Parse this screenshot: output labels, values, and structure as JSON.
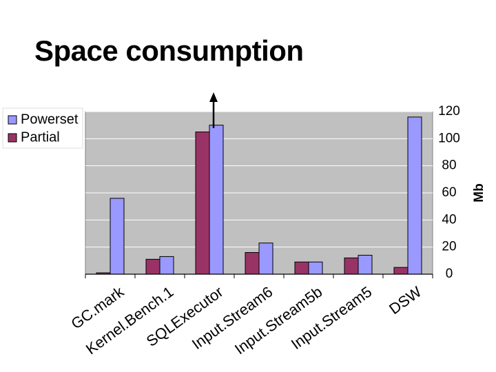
{
  "slide": {
    "title": "Space consumption"
  },
  "chart_data": {
    "type": "bar",
    "categories": [
      "GC.mark",
      "Kernel.Bench.1",
      "SQLExecutor",
      "Input.Stream6",
      "Input.Stream5b",
      "Input.Stream5",
      "DSW"
    ],
    "series": [
      {
        "name": "Partial",
        "color": "#993366",
        "values": [
          1,
          11,
          105,
          16,
          9,
          12,
          5
        ]
      },
      {
        "name": "Powerset",
        "color": "#9999ff",
        "values": [
          56,
          13,
          110,
          23,
          9,
          14,
          116
        ]
      }
    ],
    "ylabel": "Mb",
    "ylim": [
      0,
      120
    ],
    "yticks": [
      0,
      20,
      40,
      60,
      80,
      100,
      120
    ],
    "y_axis_side": "right",
    "grid": true,
    "plot_background": "#c0c0c0",
    "legend": {
      "placement": "top-left",
      "items": [
        "Powerset",
        "Partial"
      ]
    },
    "annotation": {
      "type": "up-arrow",
      "category": "SQLExecutor",
      "meaning": "bar exceeds chart range"
    }
  }
}
